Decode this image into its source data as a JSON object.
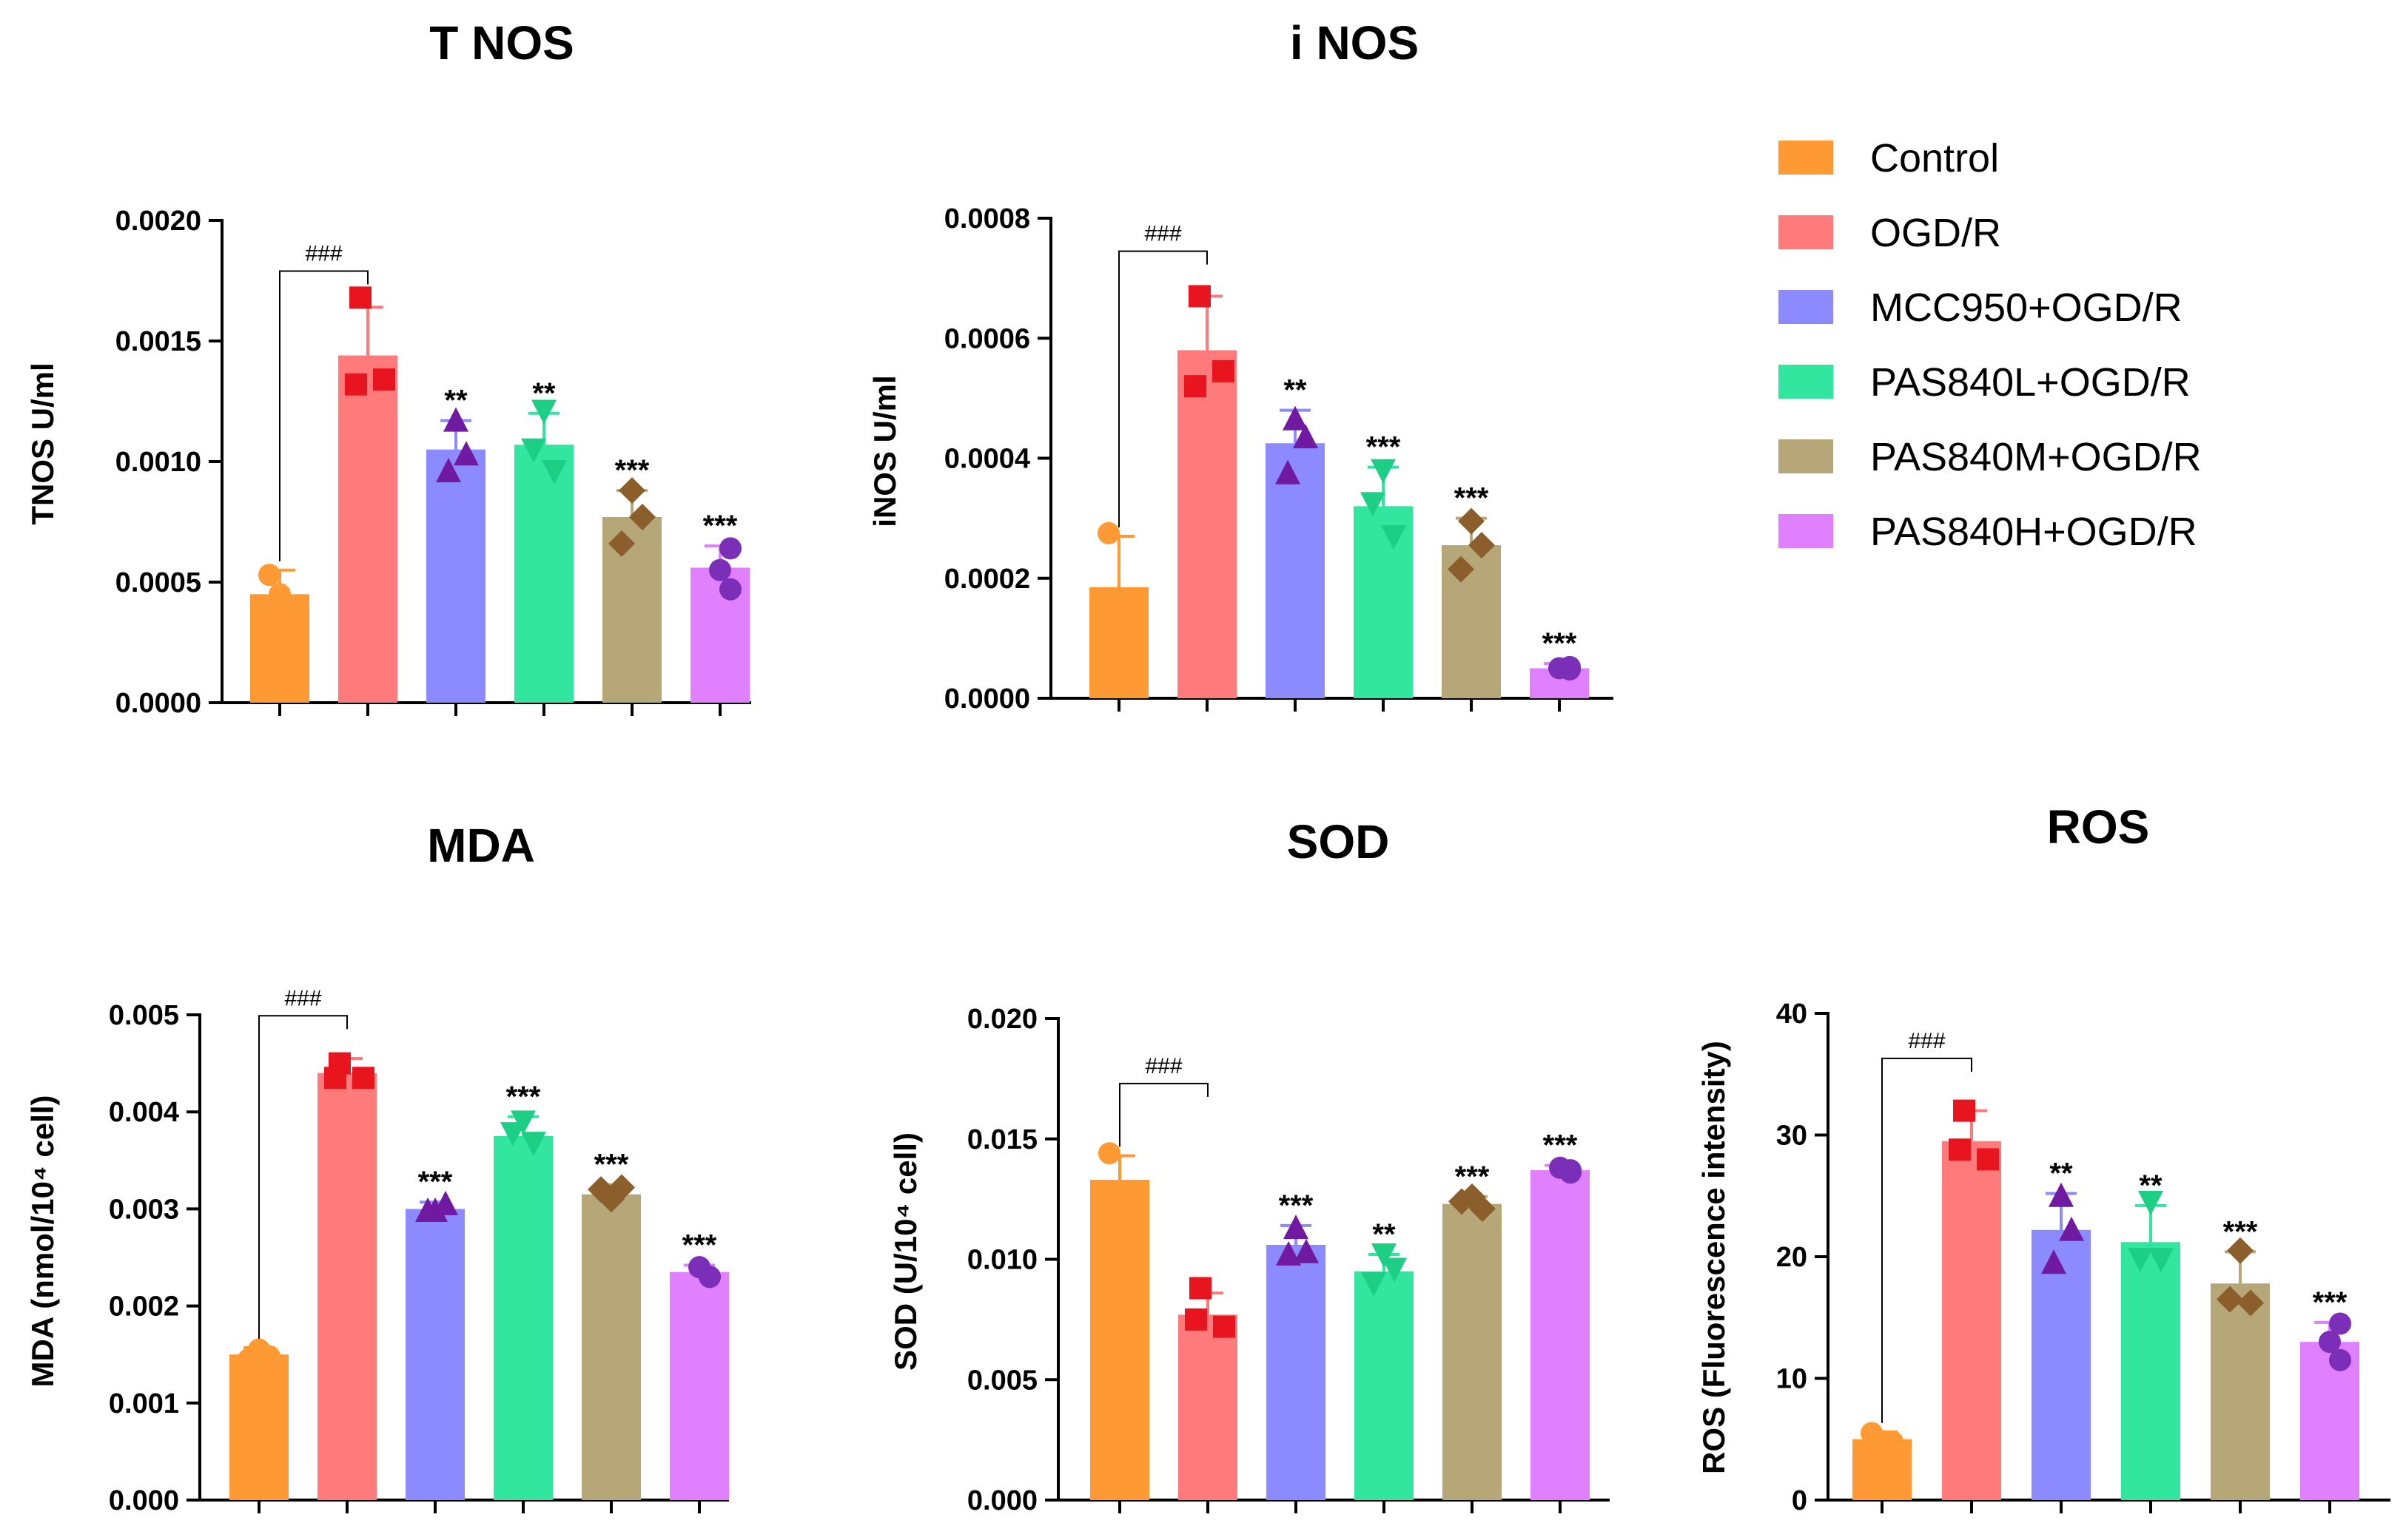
{
  "legend": [
    {
      "label": "Control",
      "color": "#ff9933"
    },
    {
      "label": "OGD/R",
      "color": "#ff7b7b"
    },
    {
      "label": "MCC950+OGD/R",
      "color": "#8b8bff"
    },
    {
      "label": "PAS840L+OGD/R",
      "color": "#33e6a0"
    },
    {
      "label": "PAS840M+OGD/R",
      "color": "#b5a777"
    },
    {
      "label": "PAS840H+OGD/R",
      "color": "#e080ff"
    }
  ],
  "chart_data": [
    {
      "type": "bar",
      "title": "T NOS",
      "ylabel": "TNOS U/ml",
      "ylim": [
        0,
        0.002
      ],
      "yticks": [
        "0.0000",
        "0.0005",
        "0.0010",
        "0.0015",
        "0.0020"
      ],
      "categories": [
        "Control",
        "OGD/R",
        "MCC950+OGD/R",
        "PAS840L+OGD/R",
        "PAS840M+OGD/R",
        "PAS840H+OGD/R"
      ],
      "values": [
        0.00045,
        0.00144,
        0.00105,
        0.00107,
        0.00077,
        0.00056
      ],
      "errors": [
        0.0001,
        0.0002,
        0.00012,
        0.00013,
        0.00011,
        9e-05
      ],
      "points": [
        [
          0.00053,
          0.00045,
          0.00036
        ],
        [
          0.00168,
          0.00134,
          0.00132
        ],
        [
          0.00117,
          0.00103,
          0.00096
        ],
        [
          0.00121,
          0.00105,
          0.00096
        ],
        [
          0.00088,
          0.00077,
          0.00066
        ],
        [
          0.00064,
          0.00055,
          0.00047
        ]
      ],
      "significance": [
        "",
        "",
        "**",
        "**",
        "***",
        "***"
      ],
      "comparison": {
        "label": "###",
        "from": 0,
        "to": 1,
        "y": 0.00179
      }
    },
    {
      "type": "bar",
      "title": "i NOS",
      "ylabel": "iNOS U/ml",
      "ylim": [
        0,
        0.0008
      ],
      "yticks": [
        "0.0000",
        "0.0002",
        "0.0004",
        "0.0006",
        "0.0008"
      ],
      "categories": [
        "Control",
        "OGD/R",
        "MCC950+OGD/R",
        "PAS840L+OGD/R",
        "PAS840M+OGD/R",
        "PAS840H+OGD/R"
      ],
      "values": [
        0.000185,
        0.00058,
        0.000425,
        0.00032,
        0.000255,
        5e-05
      ],
      "errors": [
        8.5e-05,
        9e-05,
        5.5e-05,
        6.5e-05,
        4.5e-05,
        8e-06
      ],
      "points": [
        [
          0.000275,
          0.000148,
          0.000115
        ],
        [
          0.00067,
          0.000545,
          0.00052
        ],
        [
          0.000465,
          0.000435,
          0.000375
        ],
        [
          0.00038,
          0.000325,
          0.00027
        ],
        [
          0.000295,
          0.000255,
          0.000215
        ],
        [
          4.8e-05,
          5e-05,
          5.2e-05
        ]
      ],
      "significance": [
        "",
        "",
        "**",
        "***",
        "***",
        "***"
      ],
      "comparison": {
        "label": "###",
        "from": 0,
        "to": 1,
        "y": 0.000745
      }
    },
    {
      "type": "bar",
      "title": "MDA",
      "ylabel": "MDA (nmol/10⁴ cell)",
      "ylim": [
        0,
        0.005
      ],
      "yticks": [
        "0.000",
        "0.001",
        "0.002",
        "0.003",
        "0.004",
        "0.005"
      ],
      "categories": [
        "Control",
        "OGD/R",
        "MCC950+OGD/R",
        "PAS840L+OGD/R",
        "PAS840M+OGD/R",
        "PAS840H+OGD/R"
      ],
      "values": [
        0.0015,
        0.0044,
        0.003,
        0.00375,
        0.00315,
        0.00235
      ],
      "errors": [
        7e-05,
        0.00015,
        7e-05,
        0.0002,
        0.0001,
        7e-05
      ],
      "points": [
        [
          0.00145,
          0.00155,
          0.00148
        ],
        [
          0.0045,
          0.00435,
          0.00435
        ],
        [
          0.00298,
          0.00305,
          0.00298
        ],
        [
          0.0039,
          0.00378,
          0.00368
        ],
        [
          0.0031,
          0.00322,
          0.0032
        ],
        [
          0.0023,
          0.0024,
          0.0023
        ]
      ],
      "significance": [
        "",
        "",
        "***",
        "***",
        "***",
        "***"
      ],
      "comparison": {
        "label": "###",
        "from": 0,
        "to": 1,
        "y": 0.00499
      }
    },
    {
      "type": "bar",
      "title": "SOD",
      "ylabel": "SOD (U/10⁴ cell)",
      "ylim": [
        0,
        0.02
      ],
      "yticks": [
        "0.000",
        "0.005",
        "0.010",
        "0.015",
        "0.020"
      ],
      "categories": [
        "Control",
        "OGD/R",
        "MCC950+OGD/R",
        "PAS840L+OGD/R",
        "PAS840M+OGD/R",
        "PAS840H+OGD/R"
      ],
      "values": [
        0.0133,
        0.0077,
        0.0106,
        0.0095,
        0.0123,
        0.0137
      ],
      "errors": [
        0.001,
        0.0009,
        0.0008,
        0.0007,
        0.0003,
        0.0002
      ],
      "points": [
        [
          0.0144,
          0.0128,
          0.0128
        ],
        [
          0.0088,
          0.0072,
          0.0075
        ],
        [
          0.0113,
          0.0103,
          0.0102
        ],
        [
          0.0102,
          0.009,
          0.0096
        ],
        [
          0.0126,
          0.0121,
          0.0124
        ],
        [
          0.0136,
          0.0138,
          0.0137
        ]
      ],
      "significance": [
        "",
        "",
        "***",
        "**",
        "***",
        "***"
      ],
      "comparison": {
        "label": "###",
        "from": 0,
        "to": 1,
        "y": 0.0173
      }
    },
    {
      "type": "bar",
      "title": "ROS",
      "ylabel": "ROS (Fluorescence intensity)",
      "ylim": [
        0,
        40
      ],
      "yticks": [
        "0",
        "10",
        "20",
        "30",
        "40"
      ],
      "categories": [
        "Control",
        "OGD/R",
        "MCC950+OGD/R",
        "PAS840L+OGD/R",
        "PAS840M+OGD/R",
        "PAS840H+OGD/R"
      ],
      "values": [
        5,
        29.5,
        22.2,
        21.2,
        17.8,
        13
      ],
      "errors": [
        0.6,
        2.5,
        3,
        3,
        2.6,
        1.6
      ],
      "points": [
        [
          5.5,
          4.8,
          4.8
        ],
        [
          32,
          28,
          28.8
        ],
        [
          25,
          22.2,
          19.5
        ],
        [
          24.5,
          19.8,
          19.8
        ],
        [
          20.5,
          16.2,
          16.5
        ],
        [
          14.5,
          13,
          11.5
        ]
      ],
      "significance": [
        "",
        "",
        "**",
        "**",
        "***",
        "***"
      ],
      "comparison": {
        "label": "###",
        "from": 0,
        "to": 1,
        "y": 36.3
      }
    }
  ]
}
